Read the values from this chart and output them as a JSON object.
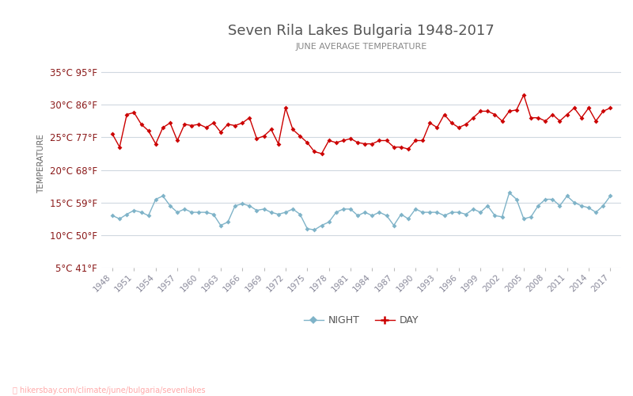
{
  "title": "Seven Rila Lakes Bulgaria 1948-2017",
  "subtitle": "JUNE AVERAGE TEMPERATURE",
  "ylabel": "TEMPERATURE",
  "watermark": "hikersbay.com/climate/june/bulgaria/sevenlakes",
  "legend_night": "NIGHT",
  "legend_day": "DAY",
  "years": [
    1948,
    1949,
    1950,
    1951,
    1952,
    1953,
    1954,
    1955,
    1956,
    1957,
    1958,
    1959,
    1960,
    1961,
    1962,
    1963,
    1964,
    1965,
    1966,
    1967,
    1968,
    1969,
    1970,
    1971,
    1972,
    1973,
    1974,
    1975,
    1976,
    1977,
    1978,
    1979,
    1980,
    1981,
    1982,
    1983,
    1984,
    1985,
    1986,
    1987,
    1988,
    1989,
    1990,
    1991,
    1992,
    1993,
    1994,
    1995,
    1996,
    1997,
    1998,
    1999,
    2000,
    2001,
    2002,
    2003,
    2004,
    2005,
    2006,
    2007,
    2008,
    2009,
    2010,
    2011,
    2012,
    2013,
    2014,
    2015,
    2016,
    2017
  ],
  "day_temps": [
    25.5,
    23.5,
    28.5,
    28.8,
    27.0,
    26.0,
    24.0,
    26.5,
    27.2,
    24.5,
    27.0,
    26.8,
    27.0,
    26.5,
    27.2,
    25.8,
    27.0,
    26.8,
    27.2,
    28.0,
    24.8,
    25.2,
    26.2,
    24.0,
    29.5,
    26.2,
    25.2,
    24.2,
    22.8,
    22.5,
    24.5,
    24.2,
    24.5,
    24.8,
    24.2,
    24.0,
    24.0,
    24.5,
    24.5,
    23.5,
    23.5,
    23.2,
    24.5,
    24.5,
    27.2,
    26.5,
    28.5,
    27.2,
    26.5,
    27.0,
    28.0,
    29.0,
    29.0,
    28.5,
    27.5,
    29.0,
    29.2,
    31.5,
    28.0,
    28.0,
    27.5,
    28.5,
    27.5,
    28.5,
    29.5,
    28.0,
    29.5,
    27.5,
    29.0,
    29.5
  ],
  "night_temps": [
    13.0,
    12.5,
    13.2,
    13.8,
    13.5,
    13.0,
    15.5,
    16.0,
    14.5,
    13.5,
    14.0,
    13.5,
    13.5,
    13.5,
    13.2,
    11.5,
    12.0,
    14.5,
    14.8,
    14.5,
    13.8,
    14.0,
    13.5,
    13.2,
    13.5,
    14.0,
    13.2,
    11.0,
    10.8,
    11.5,
    12.0,
    13.5,
    14.0,
    14.0,
    13.0,
    13.5,
    13.0,
    13.5,
    13.0,
    11.5,
    13.2,
    12.5,
    14.0,
    13.5,
    13.5,
    13.5,
    13.0,
    13.5,
    13.5,
    13.2,
    14.0,
    13.5,
    14.5,
    13.0,
    12.8,
    16.5,
    15.5,
    12.5,
    12.8,
    14.5,
    15.5,
    15.5,
    14.5,
    16.0,
    15.0,
    14.5,
    14.2,
    13.5,
    14.5,
    16.0
  ],
  "ylim_min": 5,
  "ylim_max": 37,
  "yticks_c": [
    5,
    10,
    15,
    20,
    25,
    30,
    35
  ],
  "yticks_f": [
    41,
    50,
    59,
    68,
    77,
    86,
    95
  ],
  "xtick_years": [
    1948,
    1951,
    1954,
    1957,
    1960,
    1963,
    1966,
    1969,
    1972,
    1975,
    1978,
    1981,
    1984,
    1987,
    1990,
    1993,
    1996,
    1999,
    2002,
    2005,
    2008,
    2011,
    2014,
    2017
  ],
  "day_color": "#cc0000",
  "night_color": "#7fb3c8",
  "background_color": "#ffffff",
  "grid_color": "#d0d8e0",
  "title_color": "#555555",
  "subtitle_color": "#888888",
  "tick_color": "#8b1a1a",
  "watermark_color": "#ffaaaa",
  "ylabel_color": "#666666",
  "xtick_color": "#888899"
}
